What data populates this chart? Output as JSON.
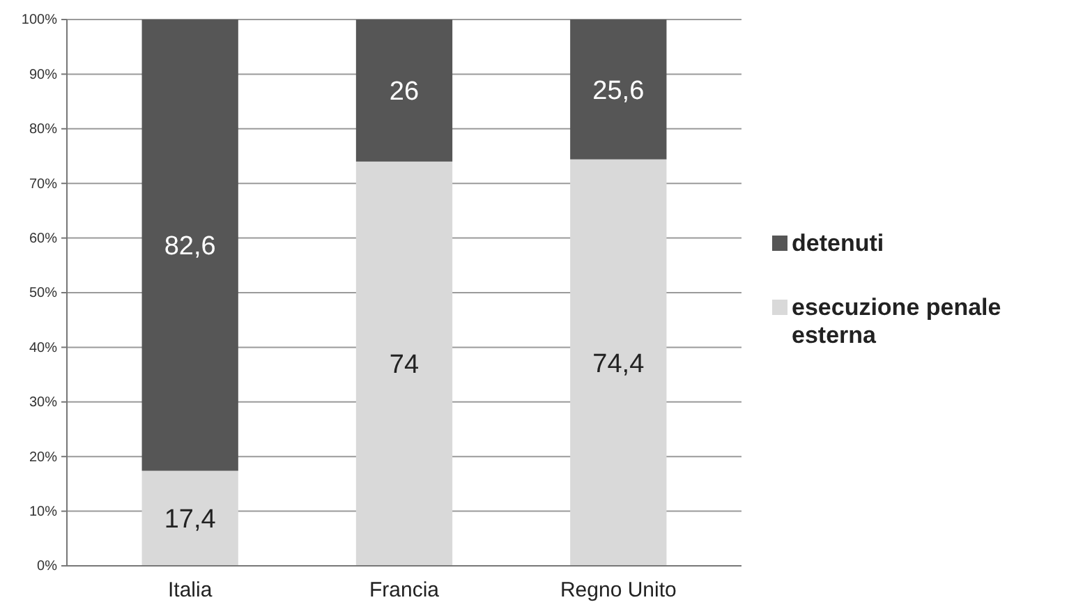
{
  "chart_data": {
    "type": "bar",
    "stacked": true,
    "categories": [
      "Italia",
      "Francia",
      "Regno Unito"
    ],
    "series": [
      {
        "name": "esecuzione penale esterna",
        "color": "#d9d9d9",
        "values": [
          17.4,
          74,
          74.4
        ],
        "value_labels": [
          "17,4",
          "74",
          "74,4"
        ]
      },
      {
        "name": "detenuti",
        "color": "#565656",
        "values": [
          82.6,
          26,
          25.6
        ],
        "value_labels": [
          "82,6",
          "26",
          "25,6"
        ]
      }
    ],
    "ylim": [
      0,
      100
    ],
    "yticks": [
      {
        "value": 0,
        "label": "0%"
      },
      {
        "value": 10,
        "label": "10%"
      },
      {
        "value": 20,
        "label": "20%"
      },
      {
        "value": 30,
        "label": "30%"
      },
      {
        "value": 40,
        "label": "40%"
      },
      {
        "value": 50,
        "label": "50%"
      },
      {
        "value": 60,
        "label": "60%"
      },
      {
        "value": 70,
        "label": "70%"
      },
      {
        "value": 80,
        "label": "80%"
      },
      {
        "value": 90,
        "label": "90%"
      },
      {
        "value": 100,
        "label": "100%"
      }
    ],
    "grid": "y",
    "legend": "right"
  }
}
